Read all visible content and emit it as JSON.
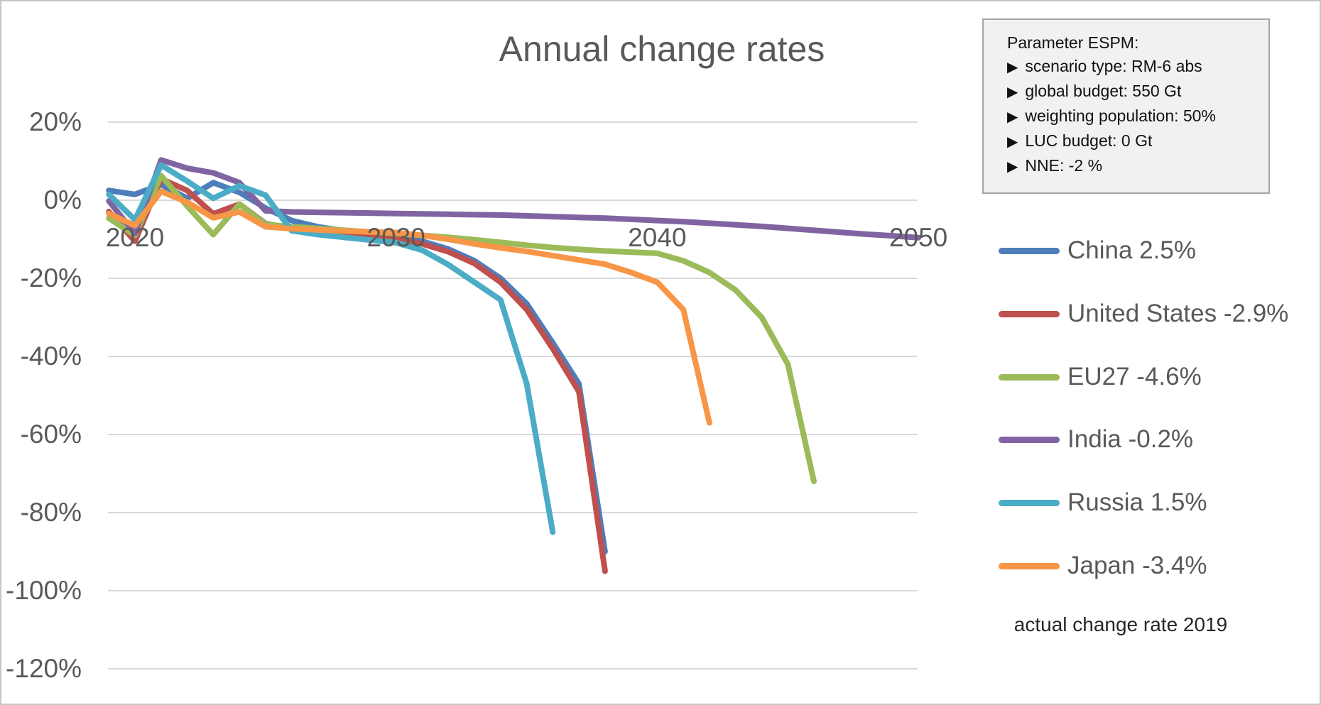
{
  "title": "Annual change rates",
  "param_box": {
    "title": "Parameter ESPM:",
    "bullet_icon": "▶",
    "items": [
      "scenario type: RM-6 abs",
      "global budget: 550 Gt",
      "weighting population: 50%",
      "LUC budget: 0 Gt",
      "NNE: -2 %"
    ]
  },
  "legend": {
    "items": [
      {
        "label": "China 2.5%",
        "color": "#4D7EBB"
      },
      {
        "label": "United States -2.9%",
        "color": "#C0504D"
      },
      {
        "label": "EU27 -4.6%",
        "color": "#9BBB59"
      },
      {
        "label": "India -0.2%",
        "color": "#8064A2"
      },
      {
        "label": "Russia 1.5%",
        "color": "#4BACC6"
      },
      {
        "label": "Japan -3.4%",
        "color": "#F79646"
      }
    ],
    "footnote": "actual change rate 2019"
  },
  "colors": {
    "axis_text": "#595959",
    "title_text": "#595959",
    "gridline": "#D9D9D9",
    "box_bg": "#F1F1F1",
    "box_border": "#A6A6A6"
  },
  "chart_data": {
    "type": "line",
    "title": "Annual change rates",
    "xlabel": "",
    "ylabel": "",
    "xlim": [
      2019,
      2050
    ],
    "ylim": [
      -130,
      25
    ],
    "x_ticks": [
      2020,
      2030,
      2040,
      2050
    ],
    "y_ticks": [
      20,
      0,
      -20,
      -40,
      -60,
      -80,
      -100,
      -120
    ],
    "y_tick_suffix": "%",
    "grid": "horizontal",
    "legend_position": "right",
    "annotation": "actual change rate 2019",
    "series": [
      {
        "name": "China",
        "actual_change_rate_2019": "2.5%",
        "color": "#4D7EBB",
        "points": [
          [
            2019,
            2.5
          ],
          [
            2020,
            1.5
          ],
          [
            2021,
            4.0
          ],
          [
            2022,
            0.5
          ],
          [
            2023,
            4.5
          ],
          [
            2024,
            2.0
          ],
          [
            2025,
            -2.0
          ],
          [
            2026,
            -5.2
          ],
          [
            2027,
            -6.8
          ],
          [
            2028,
            -7.8
          ],
          [
            2029,
            -8.5
          ],
          [
            2030,
            -9.2
          ],
          [
            2031,
            -10.5
          ],
          [
            2032,
            -12.5
          ],
          [
            2033,
            -15.5
          ],
          [
            2034,
            -20.0
          ],
          [
            2035,
            -26.5
          ],
          [
            2036,
            -36.5
          ],
          [
            2037,
            -47.0
          ],
          [
            2038,
            -90.0
          ]
        ]
      },
      {
        "name": "United States",
        "actual_change_rate_2019": "-2.9%",
        "color": "#C0504D",
        "points": [
          [
            2019,
            -2.9
          ],
          [
            2020,
            -10.5
          ],
          [
            2021,
            5.5
          ],
          [
            2022,
            2.5
          ],
          [
            2023,
            -3.5
          ],
          [
            2024,
            -1.0
          ],
          [
            2025,
            -6.0
          ],
          [
            2026,
            -7.2
          ],
          [
            2027,
            -7.9
          ],
          [
            2028,
            -8.5
          ],
          [
            2029,
            -9.0
          ],
          [
            2030,
            -9.7
          ],
          [
            2031,
            -11.2
          ],
          [
            2032,
            -13.2
          ],
          [
            2033,
            -16.2
          ],
          [
            2034,
            -21.0
          ],
          [
            2035,
            -28.0
          ],
          [
            2036,
            -38.0
          ],
          [
            2037,
            -49.0
          ],
          [
            2038,
            -95.0
          ]
        ]
      },
      {
        "name": "EU27",
        "actual_change_rate_2019": "-4.6%",
        "color": "#9BBB59",
        "points": [
          [
            2019,
            -4.6
          ],
          [
            2020,
            -9.0
          ],
          [
            2021,
            6.3
          ],
          [
            2022,
            -1.5
          ],
          [
            2023,
            -8.8
          ],
          [
            2024,
            -1.0
          ],
          [
            2025,
            -6.2
          ],
          [
            2026,
            -6.8
          ],
          [
            2027,
            -7.2
          ],
          [
            2028,
            -7.7
          ],
          [
            2029,
            -8.1
          ],
          [
            2030,
            -8.5
          ],
          [
            2031,
            -9.0
          ],
          [
            2032,
            -9.5
          ],
          [
            2033,
            -10.1
          ],
          [
            2034,
            -10.8
          ],
          [
            2035,
            -11.5
          ],
          [
            2036,
            -12.1
          ],
          [
            2037,
            -12.6
          ],
          [
            2038,
            -13.0
          ],
          [
            2039,
            -13.3
          ],
          [
            2040,
            -13.6
          ],
          [
            2041,
            -15.5
          ],
          [
            2042,
            -18.5
          ],
          [
            2043,
            -23.0
          ],
          [
            2044,
            -30.0
          ],
          [
            2045,
            -42.0
          ],
          [
            2046,
            -72.0
          ]
        ]
      },
      {
        "name": "India",
        "actual_change_rate_2019": "-0.2%",
        "color": "#8064A2",
        "points": [
          [
            2019,
            -0.2
          ],
          [
            2020,
            -8.5
          ],
          [
            2021,
            10.3
          ],
          [
            2022,
            8.2
          ],
          [
            2023,
            7.0
          ],
          [
            2024,
            4.5
          ],
          [
            2025,
            -2.7
          ],
          [
            2026,
            -3.0
          ],
          [
            2027,
            -3.1
          ],
          [
            2028,
            -3.2
          ],
          [
            2029,
            -3.3
          ],
          [
            2030,
            -3.4
          ],
          [
            2031,
            -3.5
          ],
          [
            2032,
            -3.6
          ],
          [
            2033,
            -3.7
          ],
          [
            2034,
            -3.8
          ],
          [
            2035,
            -4.0
          ],
          [
            2036,
            -4.2
          ],
          [
            2037,
            -4.4
          ],
          [
            2038,
            -4.6
          ],
          [
            2039,
            -4.9
          ],
          [
            2040,
            -5.2
          ],
          [
            2041,
            -5.5
          ],
          [
            2042,
            -5.9
          ],
          [
            2043,
            -6.3
          ],
          [
            2044,
            -6.7
          ],
          [
            2045,
            -7.2
          ],
          [
            2046,
            -7.7
          ],
          [
            2047,
            -8.2
          ],
          [
            2048,
            -8.7
          ],
          [
            2049,
            -9.1
          ],
          [
            2050,
            -9.6
          ]
        ]
      },
      {
        "name": "Russia",
        "actual_change_rate_2019": "1.5%",
        "color": "#4BACC6",
        "points": [
          [
            2019,
            1.5
          ],
          [
            2020,
            -5.0
          ],
          [
            2021,
            9.0
          ],
          [
            2022,
            4.9
          ],
          [
            2023,
            0.5
          ],
          [
            2024,
            3.7
          ],
          [
            2025,
            1.3
          ],
          [
            2026,
            -7.8
          ],
          [
            2027,
            -8.8
          ],
          [
            2028,
            -9.5
          ],
          [
            2029,
            -10.2
          ],
          [
            2030,
            -10.9
          ],
          [
            2031,
            -12.8
          ],
          [
            2032,
            -16.5
          ],
          [
            2033,
            -21.0
          ],
          [
            2034,
            -25.5
          ],
          [
            2035,
            -47.0
          ],
          [
            2036,
            -85.0
          ]
        ]
      },
      {
        "name": "Japan",
        "actual_change_rate_2019": "-3.4%",
        "color": "#F79646",
        "points": [
          [
            2019,
            -3.4
          ],
          [
            2020,
            -6.5
          ],
          [
            2021,
            2.3
          ],
          [
            2022,
            -0.5
          ],
          [
            2023,
            -4.5
          ],
          [
            2024,
            -3.0
          ],
          [
            2025,
            -6.8
          ],
          [
            2026,
            -7.3
          ],
          [
            2027,
            -7.6
          ],
          [
            2028,
            -7.9
          ],
          [
            2029,
            -8.1
          ],
          [
            2030,
            -8.3
          ],
          [
            2031,
            -9.0
          ],
          [
            2032,
            -10.0
          ],
          [
            2033,
            -11.2
          ],
          [
            2034,
            -12.2
          ],
          [
            2035,
            -13.1
          ],
          [
            2036,
            -14.2
          ],
          [
            2037,
            -15.3
          ],
          [
            2038,
            -16.4
          ],
          [
            2039,
            -18.5
          ],
          [
            2040,
            -21.0
          ],
          [
            2041,
            -28.0
          ],
          [
            2042,
            -57.0
          ]
        ]
      }
    ]
  }
}
